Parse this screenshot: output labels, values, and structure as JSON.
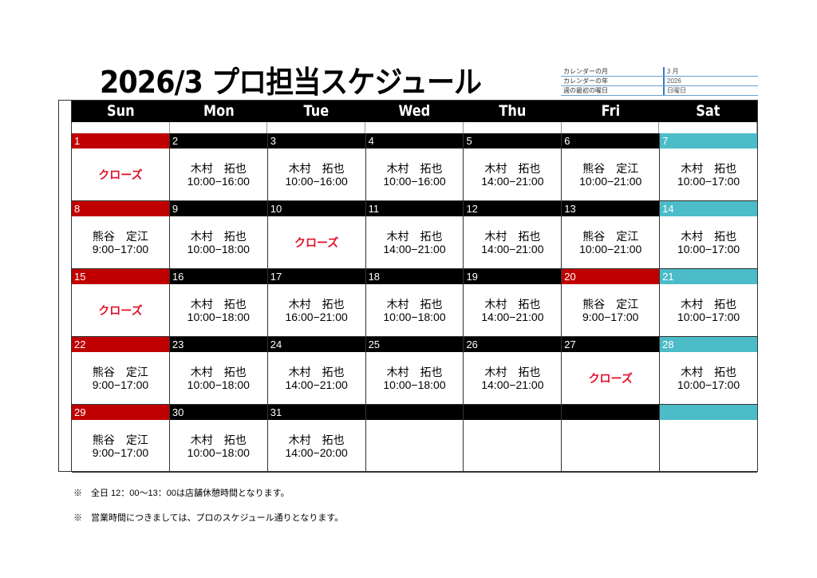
{
  "title": "2026/3 プロ担当スケジュール",
  "info": [
    {
      "key": "カレンダーの月",
      "value": "3 月"
    },
    {
      "key": "カレンダーの年",
      "value": "2026"
    },
    {
      "key": "週の最初の曜日",
      "value": "日曜日"
    }
  ],
  "weekdays": [
    "Sun",
    "Mon",
    "Tue",
    "Wed",
    "Thu",
    "Fri",
    "Sat"
  ],
  "colors": {
    "sunday": "#c00000",
    "saturday": "#4bbcc8",
    "close": "#e0102a"
  },
  "weeks": [
    [
      {
        "n": "1",
        "c": "red",
        "close": "クローズ"
      },
      {
        "n": "2",
        "name": "木村　拓也",
        "time": "10:00−16:00"
      },
      {
        "n": "3",
        "name": "木村　拓也",
        "time": "10:00−16:00"
      },
      {
        "n": "4",
        "name": "木村　拓也",
        "time": "10:00−16:00"
      },
      {
        "n": "5",
        "name": "木村　拓也",
        "time": "14:00−21:00"
      },
      {
        "n": "6",
        "name": "熊谷　定江",
        "time": "10:00−21:00"
      },
      {
        "n": "7",
        "c": "teal",
        "name": "木村　拓也",
        "time": "10:00−17:00"
      }
    ],
    [
      {
        "n": "8",
        "c": "red",
        "name": "熊谷　定江",
        "time": "9:00−17:00"
      },
      {
        "n": "9",
        "name": "木村　拓也",
        "time": "10:00−18:00"
      },
      {
        "n": "10",
        "close": "クローズ"
      },
      {
        "n": "11",
        "name": "木村　拓也",
        "time": "14:00−21:00"
      },
      {
        "n": "12",
        "name": "木村　拓也",
        "time": "14:00−21:00"
      },
      {
        "n": "13",
        "name": "熊谷　定江",
        "time": "10:00−21:00"
      },
      {
        "n": "14",
        "c": "teal",
        "name": "木村　拓也",
        "time": "10:00−17:00"
      }
    ],
    [
      {
        "n": "15",
        "c": "red",
        "close": "クローズ"
      },
      {
        "n": "16",
        "name": "木村　拓也",
        "time": "10:00−18:00"
      },
      {
        "n": "17",
        "name": "木村　拓也",
        "time": "16:00−21:00"
      },
      {
        "n": "18",
        "name": "木村　拓也",
        "time": "10:00−18:00"
      },
      {
        "n": "19",
        "name": "木村　拓也",
        "time": "14:00−21:00"
      },
      {
        "n": "20",
        "c": "red",
        "name": "熊谷　定江",
        "time": "9:00−17:00"
      },
      {
        "n": "21",
        "c": "teal",
        "name": "木村　拓也",
        "time": "10:00−17:00"
      }
    ],
    [
      {
        "n": "22",
        "c": "red",
        "name": "熊谷　定江",
        "time": "9:00−17:00"
      },
      {
        "n": "23",
        "name": "木村　拓也",
        "time": "10:00−18:00"
      },
      {
        "n": "24",
        "name": "木村　拓也",
        "time": "14:00−21:00"
      },
      {
        "n": "25",
        "name": "木村　拓也",
        "time": "10:00−18:00"
      },
      {
        "n": "26",
        "name": "木村　拓也",
        "time": "14:00−21:00"
      },
      {
        "n": "27",
        "close": "クローズ"
      },
      {
        "n": "28",
        "c": "teal",
        "name": "木村　拓也",
        "time": "10:00−17:00"
      }
    ],
    [
      {
        "n": "29",
        "c": "red",
        "name": "熊谷　定江",
        "time": "9:00−17:00"
      },
      {
        "n": "30",
        "name": "木村　拓也",
        "time": "10:00−18:00"
      },
      {
        "n": "31",
        "name": "木村　拓也",
        "time": "14:00−20:00"
      },
      {
        "n": ""
      },
      {
        "n": ""
      },
      {
        "n": ""
      },
      {
        "n": "",
        "c": "teal"
      }
    ]
  ],
  "notes": [
    "※　全日 12：00～13：00は店舗休憩時間となります。",
    "※　営業時間につきましては、プロのスケジュール通りとなります。"
  ]
}
